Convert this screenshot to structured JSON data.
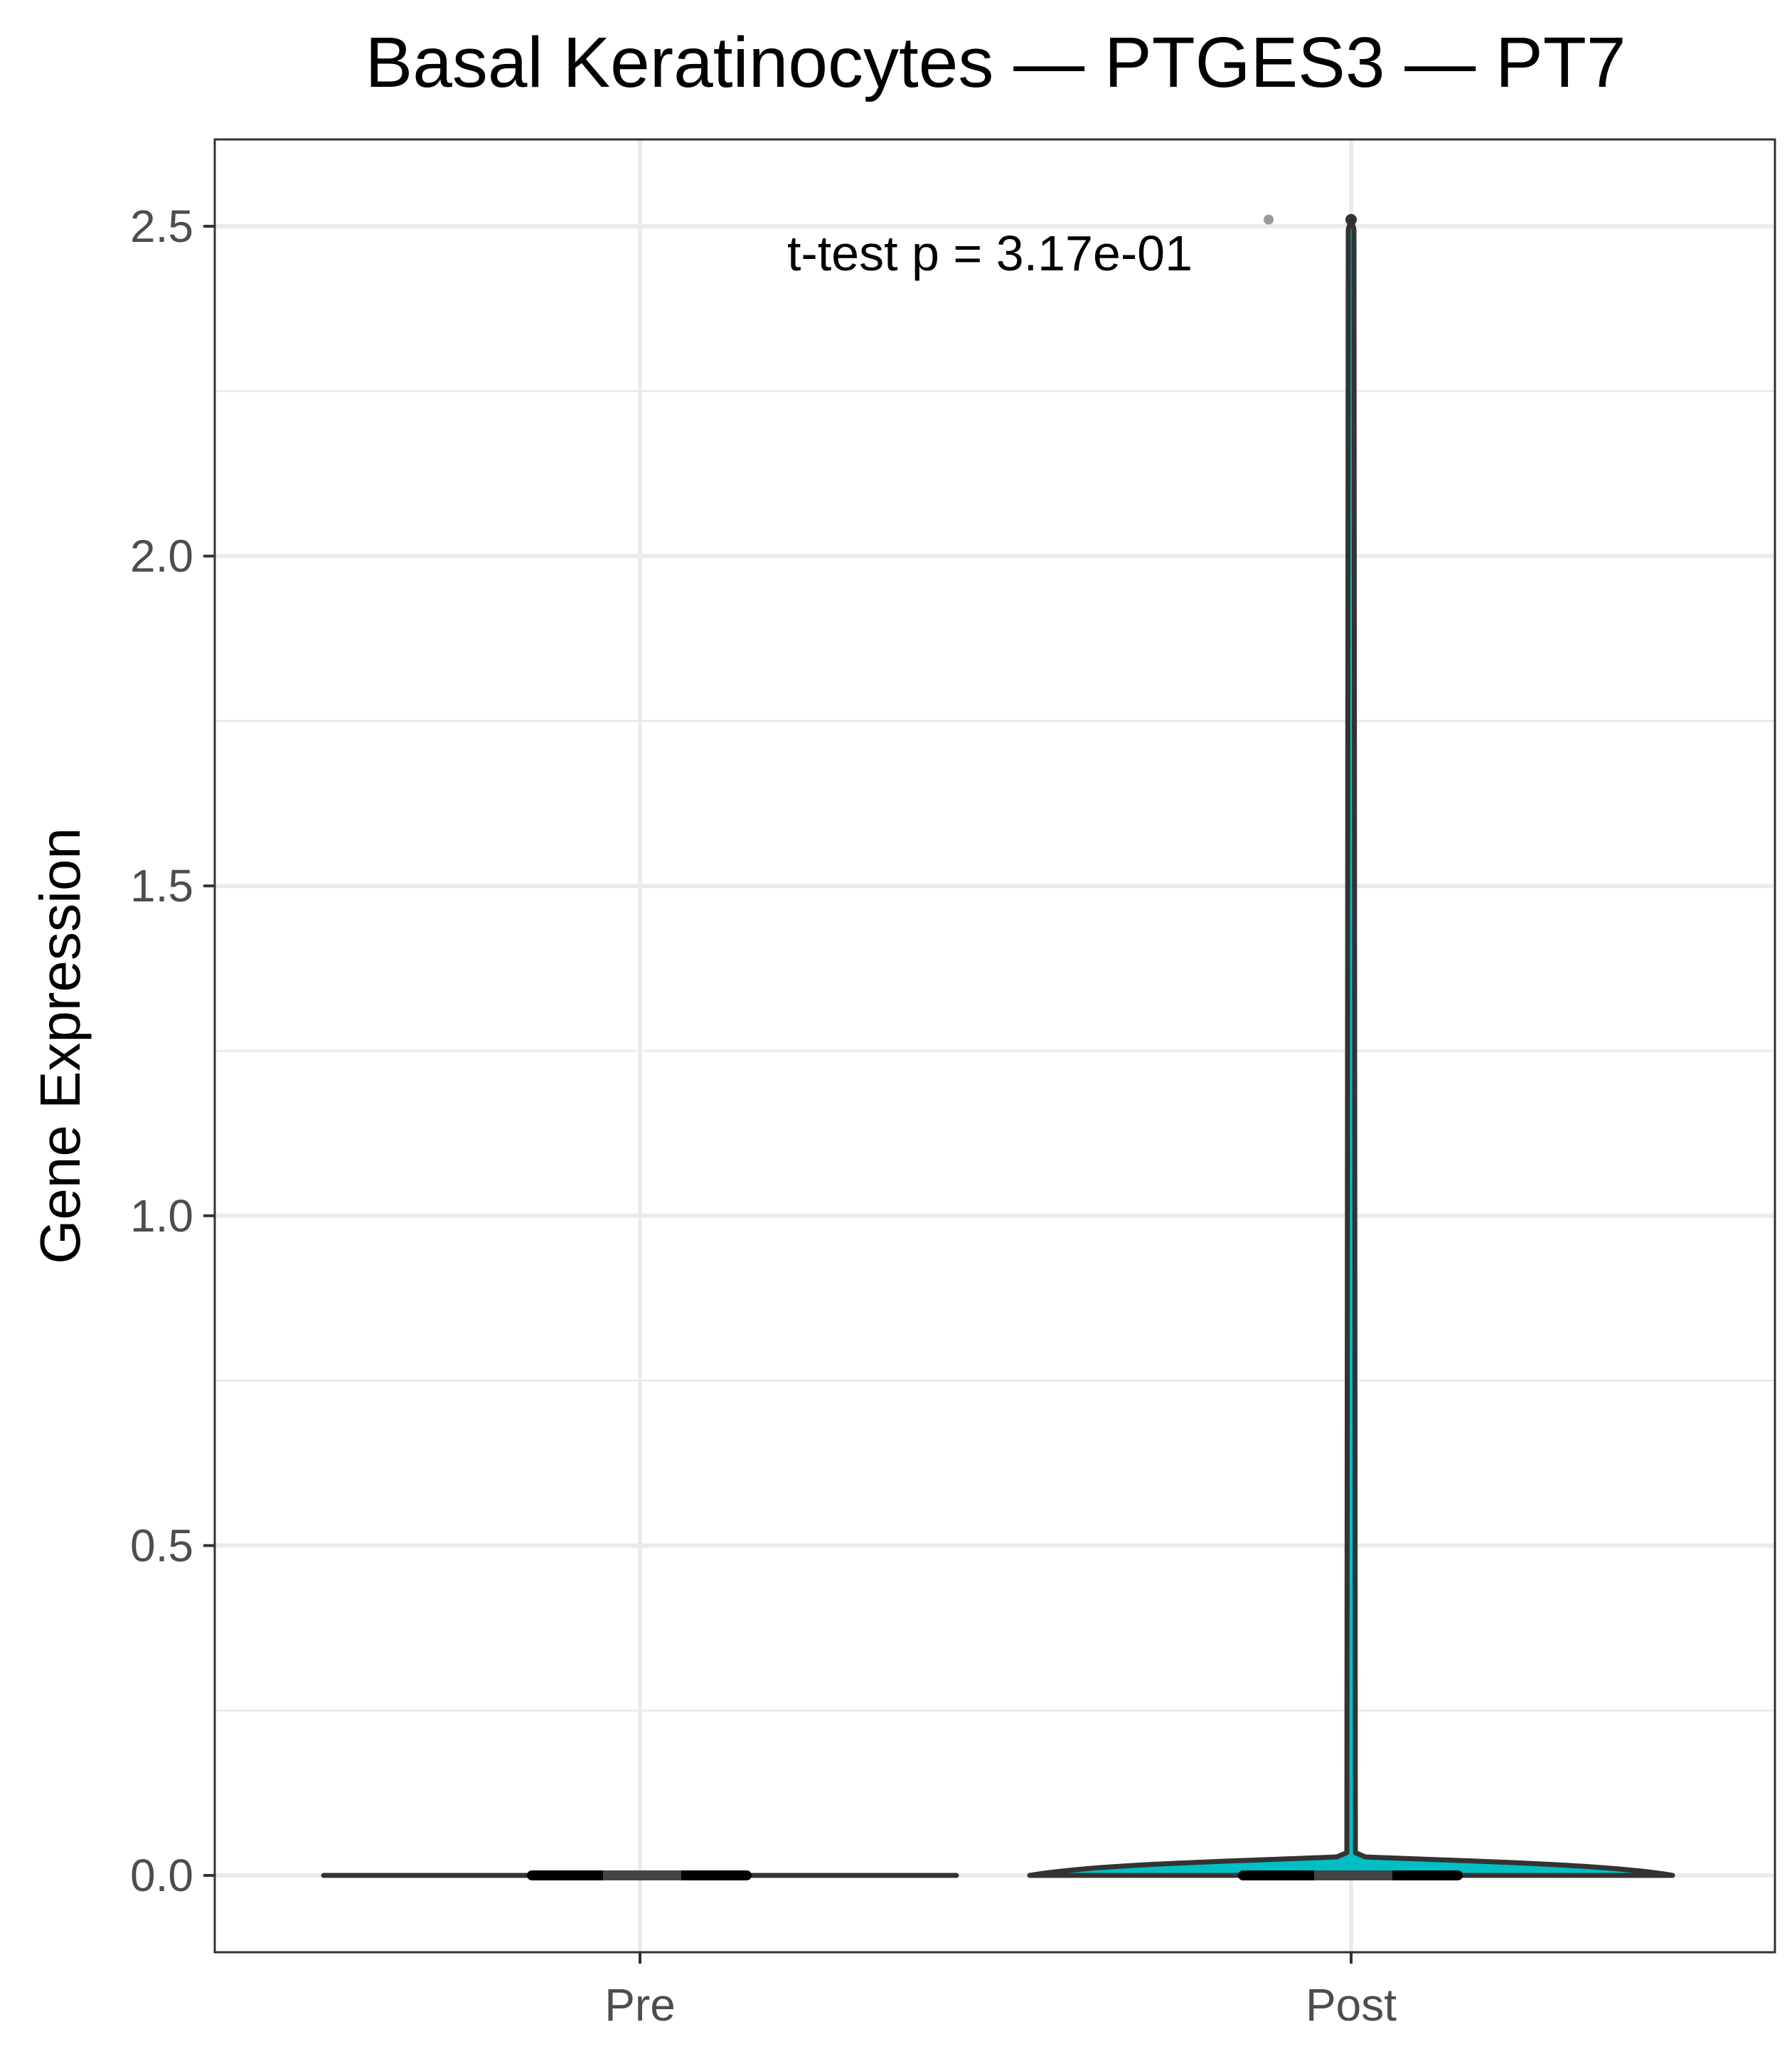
{
  "chart_data": {
    "type": "violin",
    "title": "Basal Keratinocytes — PTGES3 — PT7",
    "xlabel": "",
    "ylabel": "Gene Expression",
    "categories": [
      "Pre",
      "Post"
    ],
    "ylim": [
      -0.1,
      2.63
    ],
    "yticks": [
      0.0,
      0.5,
      1.0,
      1.5,
      2.0,
      2.5
    ],
    "ytick_labels": [
      "0.0",
      "0.5",
      "1.0",
      "1.5",
      "2.0",
      "2.5"
    ],
    "grid": true,
    "theme": "bw",
    "annotation": "t-test p = 3.17e-01",
    "groups": [
      {
        "name": "Pre",
        "min": 0.0,
        "max": 0.0,
        "median": 0.0,
        "q1": 0.0,
        "q3": 0.0,
        "points": [],
        "fill": "#333333"
      },
      {
        "name": "Post",
        "min": 0.0,
        "max": 2.51,
        "median": 0.0,
        "q1": 0.0,
        "q3": 0.0,
        "points": [
          2.51
        ],
        "fill": "#00bfc4"
      }
    ],
    "colors": {
      "outline": "#333333",
      "post_fill": "#00bfc4",
      "grid": "#ebebeb",
      "panel_border": "#333333"
    }
  }
}
